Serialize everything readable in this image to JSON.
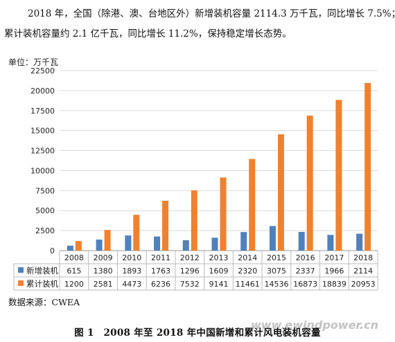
{
  "text": {
    "line1": "2018 年，全国（除港、澳、台地区外）新增装机容量 2114.3 万千瓦，同比增长 7.5%；",
    "line2": "累计装机容量约 2.1 亿千瓦，同比增长 11.2%，保持稳定增长态势。",
    "source": "数据来源：CWEA",
    "caption": "图 1　2008 年至 2018 年中国新增和累计风电装机容量",
    "watermark": "www.ewindpower.cn"
  },
  "colors": {
    "new": "#4f81bd",
    "cumulative": "#f0812e",
    "grid": "#d9d9d9"
  },
  "chart_data": {
    "type": "bar",
    "unit_label": "单位：万千瓦",
    "categories": [
      "2008",
      "2009",
      "2010",
      "2011",
      "2012",
      "2013",
      "2014",
      "2015",
      "2016",
      "2017",
      "2018"
    ],
    "series": [
      {
        "name": "新增装机",
        "values": [
          615,
          1380,
          1893,
          1763,
          1296,
          1609,
          2320,
          3075,
          2337,
          1966,
          2114
        ]
      },
      {
        "name": "累计装机",
        "values": [
          1200,
          2581,
          4473,
          6236,
          7532,
          9141,
          11461,
          14536,
          16873,
          18839,
          20953
        ]
      }
    ],
    "ylim": [
      0,
      22500
    ],
    "yticks": [
      0,
      2500,
      5000,
      7500,
      10000,
      12500,
      15000,
      17500,
      20000,
      22500
    ],
    "grid": true,
    "legend": "data-table-below"
  }
}
